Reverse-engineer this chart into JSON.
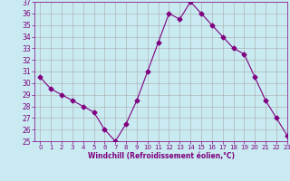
{
  "x": [
    0,
    1,
    2,
    3,
    4,
    5,
    6,
    7,
    8,
    9,
    10,
    11,
    12,
    13,
    14,
    15,
    16,
    17,
    18,
    19,
    20,
    21,
    22,
    23
  ],
  "y": [
    30.5,
    29.5,
    29.0,
    28.5,
    28.0,
    27.5,
    26.0,
    25.0,
    26.5,
    28.5,
    31.0,
    33.5,
    36.0,
    35.5,
    37.0,
    36.0,
    35.0,
    34.0,
    33.0,
    32.5,
    30.5,
    28.5,
    27.0,
    25.5
  ],
  "line_color": "#800080",
  "marker": "D",
  "marker_size": 2.5,
  "bg_color": "#c8eaf0",
  "grid_color": "#aaaaaa",
  "xlabel": "Windchill (Refroidissement éolien,°C)",
  "xlabel_color": "#800080",
  "tick_color": "#800080",
  "ylim": [
    25,
    37
  ],
  "xlim": [
    -0.5,
    23
  ],
  "yticks": [
    25,
    26,
    27,
    28,
    29,
    30,
    31,
    32,
    33,
    34,
    35,
    36,
    37
  ],
  "xticks": [
    0,
    1,
    2,
    3,
    4,
    5,
    6,
    7,
    8,
    9,
    10,
    11,
    12,
    13,
    14,
    15,
    16,
    17,
    18,
    19,
    20,
    21,
    22,
    23
  ],
  "figsize": [
    3.2,
    2.0
  ],
  "dpi": 100
}
